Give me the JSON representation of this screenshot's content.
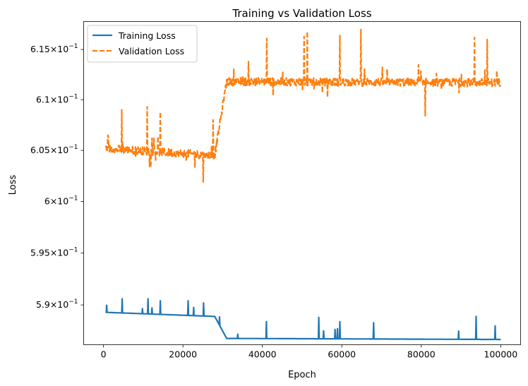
{
  "chart_data": {
    "type": "line",
    "title": "Training vs Validation Loss",
    "xlabel": "Epoch",
    "ylabel": "Loss",
    "yscale": "log",
    "xlim": [
      -5000,
      105000
    ],
    "ylim": [
      0.5862,
      0.6178
    ],
    "x_ticks": [
      {
        "value": 0,
        "label": "0"
      },
      {
        "value": 20000,
        "label": "20000"
      },
      {
        "value": 40000,
        "label": "40000"
      },
      {
        "value": 60000,
        "label": "60000"
      },
      {
        "value": 80000,
        "label": "80000"
      },
      {
        "value": 100000,
        "label": "100000"
      }
    ],
    "y_ticks": [
      {
        "value": 0.59,
        "mantissa": "5.9",
        "sup": "−1"
      },
      {
        "value": 0.595,
        "mantissa": "5.95",
        "sup": "−1"
      },
      {
        "value": 0.6,
        "mantissa": "6",
        "sup": "−1"
      },
      {
        "value": 0.605,
        "mantissa": "6.05",
        "sup": "−1"
      },
      {
        "value": 0.61,
        "mantissa": "6.1",
        "sup": "−1"
      },
      {
        "value": 0.615,
        "mantissa": "6.15",
        "sup": "−1"
      }
    ],
    "legend_position": "top-left",
    "series": [
      {
        "name": "Training Loss",
        "color": "#1f77b4",
        "style": "solid",
        "segments": [
          {
            "from": 0,
            "to": 28000,
            "base_start": 0.5893,
            "base_end": 0.5889
          },
          {
            "from": 28000,
            "to": 31000,
            "base_start": 0.5889,
            "base_end": 0.5868
          },
          {
            "from": 31000,
            "to": 100000,
            "base_start": 0.5868,
            "base_end": 0.5867
          }
        ],
        "spikes": [
          [
            4700,
            0.5906
          ],
          [
            11200,
            0.5906
          ],
          [
            14300,
            0.5904
          ],
          [
            21300,
            0.5904
          ],
          [
            25200,
            0.5902
          ],
          [
            41000,
            0.5884
          ],
          [
            54200,
            0.5888
          ],
          [
            59500,
            0.5884
          ],
          [
            68000,
            0.5883
          ],
          [
            93800,
            0.5889
          ],
          [
            98600,
            0.588
          ]
        ]
      },
      {
        "name": "Validation Loss",
        "color": "#ff7f0e",
        "style": "dashed",
        "segments": [
          {
            "from": 0,
            "to": 28000,
            "base_start": 0.6052,
            "base_end": 0.6045
          },
          {
            "from": 28000,
            "to": 31000,
            "base_start": 0.6045,
            "base_end": 0.6118
          },
          {
            "from": 31000,
            "to": 100000,
            "base_start": 0.6118,
            "base_end": 0.6117
          }
        ],
        "spikes": [
          [
            4600,
            0.609
          ],
          [
            11000,
            0.6093
          ],
          [
            14300,
            0.6088
          ],
          [
            25100,
            0.6019
          ],
          [
            27600,
            0.608
          ],
          [
            41100,
            0.6161
          ],
          [
            50500,
            0.6163
          ],
          [
            51300,
            0.6168
          ],
          [
            59500,
            0.6164
          ],
          [
            64800,
            0.617
          ],
          [
            81000,
            0.6084
          ],
          [
            93400,
            0.6162
          ],
          [
            96600,
            0.616
          ]
        ]
      }
    ]
  }
}
